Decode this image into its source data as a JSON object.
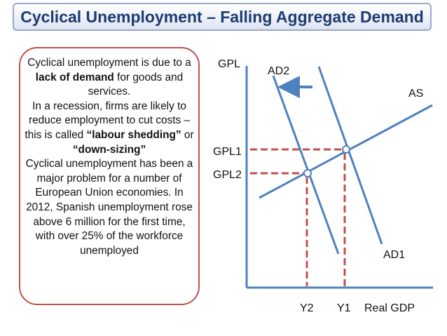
{
  "title": "Cyclical Unemployment – Falling Aggregate Demand",
  "description": {
    "p1_pre": "Cyclical unemployment is due to a ",
    "p1_bold": "lack of demand",
    "p1_post": " for goods and services.",
    "p2_pre": "In a recession, firms are likely to reduce employment to cut costs – this is called ",
    "p2_bold1": "“labour shedding”",
    "p2_mid": " or ",
    "p2_bold2": "“down-sizing”",
    "p3": "Cyclical unemployment has been a major problem for a number of European Union economies. In 2012, Spanish unemployment rose above 6 million for the first time, with over 25% of the workforce unemployed"
  },
  "diagram": {
    "y_axis_label": "GPL",
    "x_axis_label": "Real GDP",
    "curves": {
      "ad1": "AD1",
      "ad2": "AD2",
      "as": "AS"
    },
    "price_levels": {
      "gpl1": "GPL1",
      "gpl2": "GPL2"
    },
    "output_levels": {
      "y1": "Y1",
      "y2": "Y2"
    },
    "shift_direction": "left",
    "colors": {
      "curve": "#4f81bd",
      "guide": "#c0504d",
      "axis": "#4f81bd",
      "title_text": "#1f3b70",
      "box_border": "#c0504d"
    }
  }
}
